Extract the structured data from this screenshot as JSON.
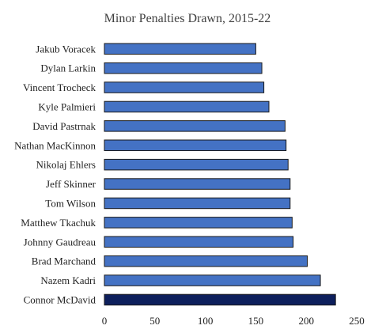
{
  "chart_data": {
    "type": "bar",
    "orientation": "horizontal",
    "title": "Minor Penalties Drawn, 2015-22",
    "xlabel": "",
    "ylabel": "",
    "xlim": [
      0,
      250
    ],
    "x_ticks": [
      0,
      50,
      100,
      150,
      200,
      250
    ],
    "grid": false,
    "legend": "none",
    "categories": [
      "Jakub Voracek",
      "Dylan Larkin",
      "Vincent Trocheck",
      "Kyle Palmieri",
      "David Pastrnak",
      "Nathan MacKinnon",
      "Nikolaj Ehlers",
      "Jeff Skinner",
      "Tom Wilson",
      "Matthew Tkachuk",
      "Johnny Gaudreau",
      "Brad Marchand",
      "Nazem Kadri",
      "Connor McDavid"
    ],
    "values": [
      150,
      156,
      158,
      163,
      179,
      180,
      182,
      184,
      184,
      186,
      187,
      201,
      214,
      229
    ],
    "colors": {
      "default_bar": "#4472c4",
      "highlight_bar": "#0d1f5c",
      "highlight_category": "Connor McDavid",
      "bar_outline": "#1a1a1a"
    }
  }
}
